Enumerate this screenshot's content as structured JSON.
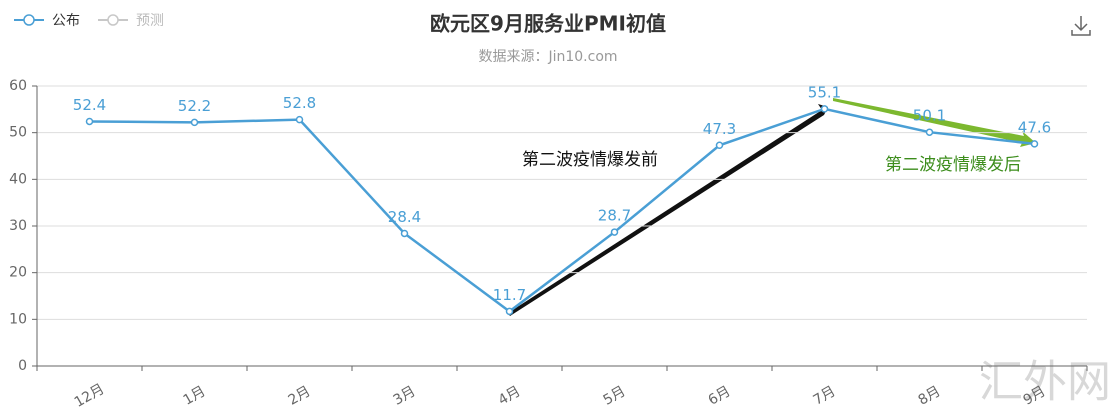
{
  "chart_data": {
    "type": "line",
    "title": "欧元区9月服务业PMI初值",
    "subtitle": "数据来源：Jin10.com",
    "categories": [
      "12月",
      "1月",
      "2月",
      "3月",
      "4月",
      "5月",
      "6月",
      "7月",
      "8月",
      "9月"
    ],
    "series": [
      {
        "name": "公布",
        "color": "#4a9fd5",
        "values": [
          52.4,
          52.2,
          52.8,
          28.4,
          11.7,
          28.7,
          47.3,
          55.1,
          50.1,
          47.6
        ]
      },
      {
        "name": "预测",
        "color": "#c8c8c8",
        "values": [
          null,
          null,
          null,
          null,
          null,
          null,
          null,
          null,
          null,
          null
        ]
      }
    ],
    "ylim": [
      0,
      60
    ],
    "yticks": [
      0,
      10,
      20,
      30,
      40,
      50,
      60
    ],
    "grid": true,
    "annotations": [
      "第二波疫情爆发前",
      "第二波疫情爆发后"
    ],
    "watermark": "汇外网"
  }
}
